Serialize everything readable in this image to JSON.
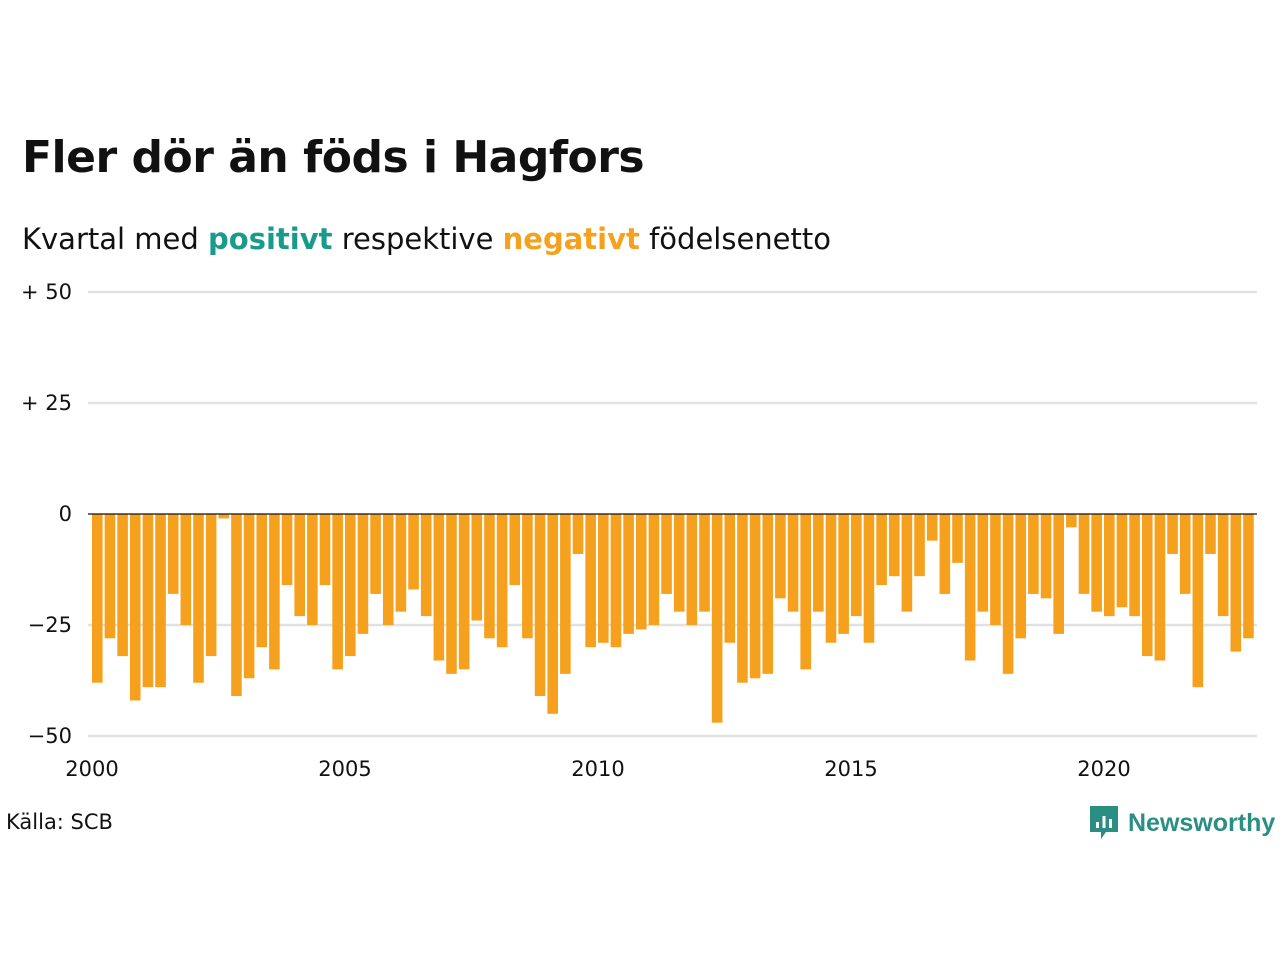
{
  "header": {
    "title": "Fler dör än föds i Hagfors",
    "subtitle_prefix": "Kvartal med ",
    "subtitle_positive": "positivt",
    "subtitle_middle": " respektive ",
    "subtitle_negative": "negativt",
    "subtitle_suffix": " födelsenetto"
  },
  "footer": {
    "source": "Källa: SCB",
    "logo_text": "Newsworthy"
  },
  "colors": {
    "positive": "#1a9a8a",
    "negative": "#f5a11e",
    "logo": "#2a8f82"
  },
  "icons": {
    "logo": "newsworthy-logo-icon"
  },
  "chart_data": {
    "type": "bar",
    "ylim": [
      -50,
      50
    ],
    "yticks": [
      {
        "value": 50,
        "label": "+ 50"
      },
      {
        "value": 25,
        "label": "+ 25"
      },
      {
        "value": 0,
        "label": "0"
      },
      {
        "value": -25,
        "label": "−25"
      },
      {
        "value": -50,
        "label": "−50"
      }
    ],
    "xticks": [
      "2000",
      "2005",
      "2010",
      "2015",
      "2020"
    ],
    "grid": true,
    "start": "2000-Q1",
    "values": [
      -38,
      -28,
      -32,
      -42,
      -39,
      -39,
      -18,
      -25,
      -38,
      -32,
      -1,
      -41,
      -37,
      -30,
      -35,
      -16,
      -23,
      -25,
      -16,
      -35,
      -32,
      -27,
      -18,
      -25,
      -22,
      -17,
      -23,
      -33,
      -36,
      -35,
      -24,
      -28,
      -30,
      -16,
      -28,
      -41,
      -45,
      -36,
      -9,
      -30,
      -29,
      -30,
      -27,
      -26,
      -25,
      -18,
      -22,
      -25,
      -22,
      -47,
      -29,
      -38,
      -37,
      -36,
      -19,
      -22,
      -35,
      -22,
      -29,
      -27,
      -23,
      -29,
      -16,
      -14,
      -22,
      -14,
      -6,
      -18,
      -11,
      -33,
      -22,
      -25,
      -36,
      -28,
      -18,
      -19,
      -27,
      -3,
      -18,
      -22,
      -23,
      -21,
      -23,
      -32,
      -33,
      -9,
      -18,
      -39,
      -9,
      -23,
      -31,
      -28
    ]
  }
}
